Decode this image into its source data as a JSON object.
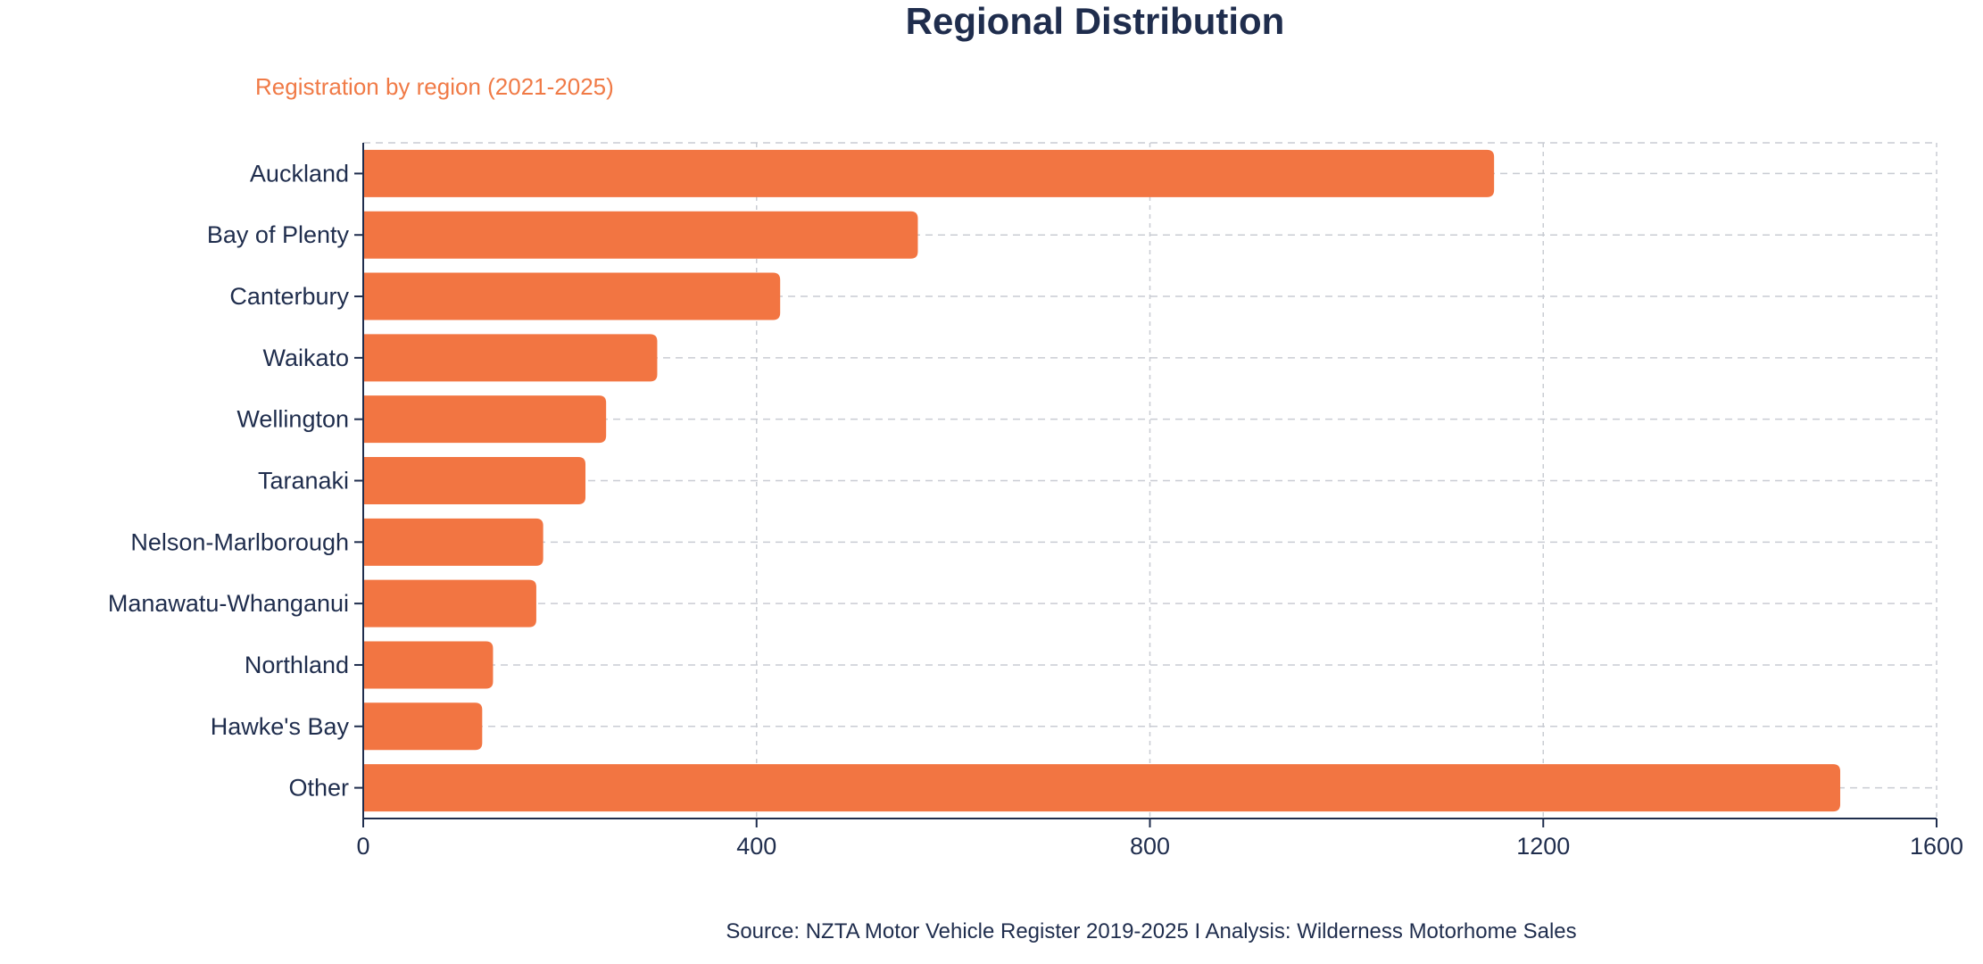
{
  "chart_data": {
    "type": "bar",
    "orientation": "horizontal",
    "title": "Regional Distribution",
    "subtitle": "Registration by region (2021-2025)",
    "source": "Source: NZTA Motor Vehicle Register 2019-2025 I Analysis: Wilderness Motorhome Sales",
    "categories": [
      "Auckland",
      "Bay of Plenty",
      "Canterbury",
      "Waikato",
      "Wellington",
      "Taranaki",
      "Nelson-Marlborough",
      "Manawatu-Whanganui",
      "Northland",
      "Hawke's Bay",
      "Other"
    ],
    "values": [
      1150,
      564,
      424,
      299,
      247,
      226,
      183,
      176,
      132,
      121,
      1502
    ],
    "xlim": [
      0,
      1600
    ],
    "xticks": [
      "0",
      "400",
      "800",
      "1200",
      "1600"
    ],
    "xlabel": "",
    "ylabel": "",
    "grid": true,
    "legend": "none",
    "colors": {
      "bar": "#f27542",
      "text": "#1f2d4d",
      "subtitle": "#f07a46",
      "grid": "#c9ccd3"
    }
  }
}
